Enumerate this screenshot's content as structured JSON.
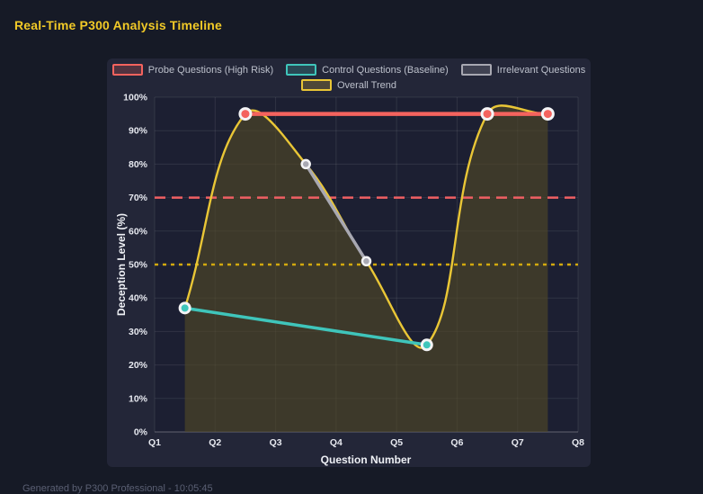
{
  "page": {
    "title": "Real-Time P300 Analysis Timeline",
    "footer": "Generated by P300 Professional - 10:05:45"
  },
  "colors": {
    "background": "#161a26",
    "card_background": "#232638",
    "plot_background": "#1c1f32",
    "title": "#f2ca27",
    "probe_red": "#f4635e",
    "control_teal": "#3fc5bb",
    "irrelevant_gray": "#a8a8b2",
    "trend_yellow": "#e9c636",
    "threshold_red": "#ef5f63",
    "threshold_yellow": "#d2a90e",
    "marker_ring_white": "#f4f4f6"
  },
  "chart_data": {
    "type": "line",
    "title": "Real-Time P300 Analysis Timeline",
    "xlabel": "Question Number",
    "ylabel": "Deception Level (%)",
    "x_range": [
      1,
      8
    ],
    "y_range": [
      0,
      100
    ],
    "x_ticks": [
      "Q1",
      "Q2",
      "Q3",
      "Q4",
      "Q5",
      "Q6",
      "Q7",
      "Q8"
    ],
    "y_tick_labels": [
      "0%",
      "10%",
      "20%",
      "30%",
      "40%",
      "50%",
      "60%",
      "70%",
      "80%",
      "90%",
      "100%"
    ],
    "y_tick_step": 10,
    "grid": true,
    "legend_position": "top",
    "series": [
      {
        "name": "Probe Questions (High Risk)",
        "color": "#f4635e",
        "line_width": 4.5,
        "marker_radius": 6,
        "marker_stroke": 3,
        "smooth": false,
        "points": [
          [
            2.5,
            95
          ],
          [
            6.5,
            95
          ],
          [
            7.5,
            95
          ]
        ]
      },
      {
        "name": "Control Questions (Baseline)",
        "color": "#3fc5bb",
        "line_width": 3.5,
        "marker_radius": 5.5,
        "marker_stroke": 3,
        "smooth": false,
        "points": [
          [
            1.5,
            37
          ],
          [
            5.5,
            26
          ]
        ]
      },
      {
        "name": "Irrelevant Questions",
        "color": "#a8a8b2",
        "line_width": 3.5,
        "marker_radius": 4.5,
        "marker_stroke": 2.5,
        "smooth": false,
        "points": [
          [
            3.5,
            80
          ],
          [
            4.5,
            51
          ]
        ]
      },
      {
        "name": "Overall Trend",
        "color": "#e9c636",
        "line_width": 2.4,
        "marker_radius": 0,
        "marker_stroke": 0,
        "smooth": true,
        "tension": 0.4,
        "fill_color": "rgba(80,72,38,0.65)",
        "points": [
          [
            1.5,
            37
          ],
          [
            2.5,
            95
          ],
          [
            3.5,
            80
          ],
          [
            4.5,
            51
          ],
          [
            5.5,
            26
          ],
          [
            6.5,
            95
          ],
          [
            7.5,
            95
          ]
        ]
      }
    ],
    "thresholds": [
      {
        "value": 70,
        "color": "#ef5f63",
        "dash": "12 7",
        "width": 2.5
      },
      {
        "value": 50,
        "color": "#d2a90e",
        "dash": "4 5",
        "width": 2.5
      }
    ]
  }
}
